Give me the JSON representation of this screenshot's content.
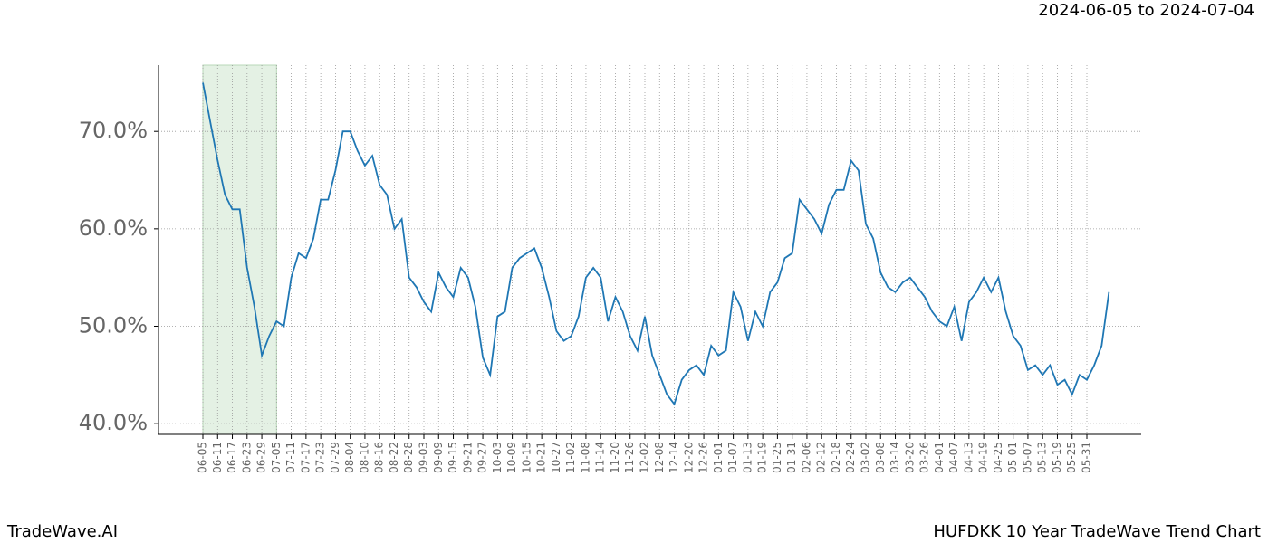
{
  "chart_data": {
    "type": "line",
    "title": "HUFDKK 10 Year TradeWave Trend Chart",
    "brand": "TradeWave.AI",
    "date_range": "2024-06-05 to 2024-07-04",
    "categories": [
      "06-05",
      null,
      "06-11",
      null,
      "06-17",
      null,
      "06-23",
      null,
      "06-29",
      null,
      "07-05",
      null,
      "07-11",
      null,
      "07-17",
      null,
      "07-23",
      null,
      "07-29",
      null,
      "08-04",
      null,
      "08-10",
      null,
      "08-16",
      null,
      "08-22",
      null,
      "08-28",
      null,
      "09-03",
      null,
      "09-09",
      null,
      "09-15",
      null,
      "09-21",
      null,
      "09-27",
      null,
      "10-03",
      null,
      "10-09",
      null,
      "10-15",
      null,
      "10-21",
      null,
      "10-27",
      null,
      "11-02",
      null,
      "11-08",
      null,
      "11-14",
      null,
      "11-20",
      null,
      "11-26",
      null,
      "12-02",
      null,
      "12-08",
      null,
      "12-14",
      null,
      "12-20",
      null,
      "12-26",
      null,
      "01-01",
      null,
      "01-07",
      null,
      "01-13",
      null,
      "01-19",
      null,
      "01-25",
      null,
      "01-31",
      null,
      "02-06",
      null,
      "02-12",
      null,
      "02-18",
      null,
      "02-24",
      null,
      "03-02",
      null,
      "03-08",
      null,
      "03-14",
      null,
      "03-20",
      null,
      "03-26",
      null,
      "04-01",
      null,
      "04-07",
      null,
      "04-13",
      null,
      "04-19",
      null,
      "04-25",
      null,
      "05-01",
      null,
      "05-07",
      null,
      "05-13",
      null,
      "05-19",
      null,
      "05-25",
      null,
      "05-31",
      null,
      null,
      null
    ],
    "series": [
      {
        "color": "#1f77b4",
        "values": [
          75,
          71,
          67,
          63.5,
          62,
          62,
          56,
          52,
          47,
          49,
          50.5,
          50,
          55,
          57.5,
          57,
          59,
          63,
          63,
          66,
          70,
          70,
          68,
          66.5,
          67.5,
          64.5,
          63.5,
          60,
          61,
          55,
          54,
          52.5,
          51.5,
          55.5,
          54,
          53,
          56,
          55,
          52,
          46.8,
          45,
          51,
          51.5,
          56,
          57,
          57.5,
          58,
          56,
          53,
          49.5,
          48.5,
          49,
          51,
          55,
          56,
          55,
          50.5,
          53,
          51.5,
          49,
          47.5,
          51,
          47,
          45,
          43,
          42,
          44.5,
          45.5,
          46,
          45,
          48,
          47,
          47.5,
          53.5,
          52,
          48.5,
          51.5,
          50,
          53.5,
          54.5,
          57,
          57.5,
          63,
          62,
          61,
          59.5,
          62.5,
          64,
          64,
          67,
          66,
          60.5,
          59,
          55.5,
          54,
          53.5,
          54.5,
          55,
          54,
          53,
          51.5,
          50.5,
          50,
          52,
          48.5,
          52.5,
          53.5,
          55,
          53.5,
          55,
          51.5,
          49,
          48,
          45.5,
          46,
          45,
          46,
          44,
          44.5,
          43,
          45,
          44.5,
          46,
          48,
          53.5
        ]
      }
    ],
    "highlight_range": [
      0,
      10
    ],
    "highlight_color": "#e4f1e4",
    "ylim": [
      38.9,
      76.8
    ],
    "yticks": [
      {
        "value": 40,
        "label": "40.0%"
      },
      {
        "value": 50,
        "label": "50.0%"
      },
      {
        "value": 60,
        "label": "60.0%"
      },
      {
        "value": 70,
        "label": "70.0%"
      }
    ],
    "grid": true
  }
}
